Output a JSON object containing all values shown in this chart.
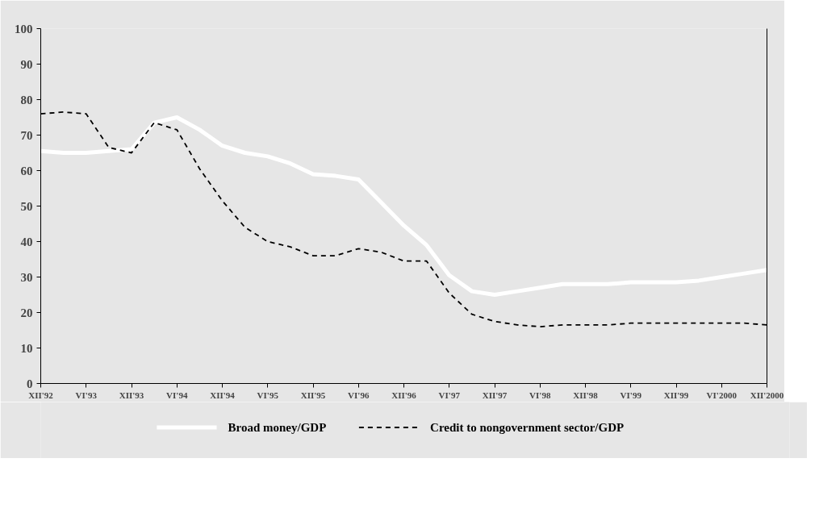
{
  "chart_data": {
    "type": "line",
    "categories": [
      "XII'92",
      null,
      "VI'93",
      null,
      "XII'93",
      null,
      "VI'94",
      null,
      "XII'94",
      null,
      "VI'95",
      null,
      "XII'95",
      null,
      "VI'96",
      null,
      "XII'96",
      null,
      "VI'97",
      null,
      "XII'97",
      null,
      "VI'98",
      null,
      "XII'98",
      null,
      "VI'99",
      null,
      "XII'99",
      null,
      "VI'2000",
      null,
      "XII'2000"
    ],
    "series": [
      {
        "name": "Broad money/GDP",
        "color": "#ffffff",
        "line_style": "solid",
        "values": [
          65.5,
          65,
          65,
          65.5,
          66,
          73.5,
          75,
          71.5,
          67,
          65,
          64,
          62,
          59,
          58.5,
          57.5,
          51,
          44.5,
          39,
          30.5,
          26,
          25,
          26,
          27,
          28,
          28,
          28,
          28.5,
          28.5,
          28.5,
          29,
          30,
          31,
          32
        ]
      },
      {
        "name": "Credit to nongovernment sector/GDP",
        "color": "#000000",
        "line_style": "dashed",
        "values": [
          76,
          76.5,
          76,
          66.5,
          65,
          73.5,
          71.5,
          60.5,
          51.5,
          44,
          40,
          38.5,
          36,
          36,
          38,
          37,
          34.5,
          34.5,
          25.5,
          19.5,
          17.5,
          16.5,
          16,
          16.5,
          16.5,
          16.5,
          17,
          17,
          17,
          17,
          17,
          17,
          16.5
        ]
      }
    ],
    "ylim": [
      0,
      100
    ],
    "yticks": [
      0,
      10,
      20,
      30,
      40,
      50,
      60,
      70,
      80,
      90,
      100
    ],
    "grid": false,
    "legend": "bottom",
    "marker": "none"
  }
}
